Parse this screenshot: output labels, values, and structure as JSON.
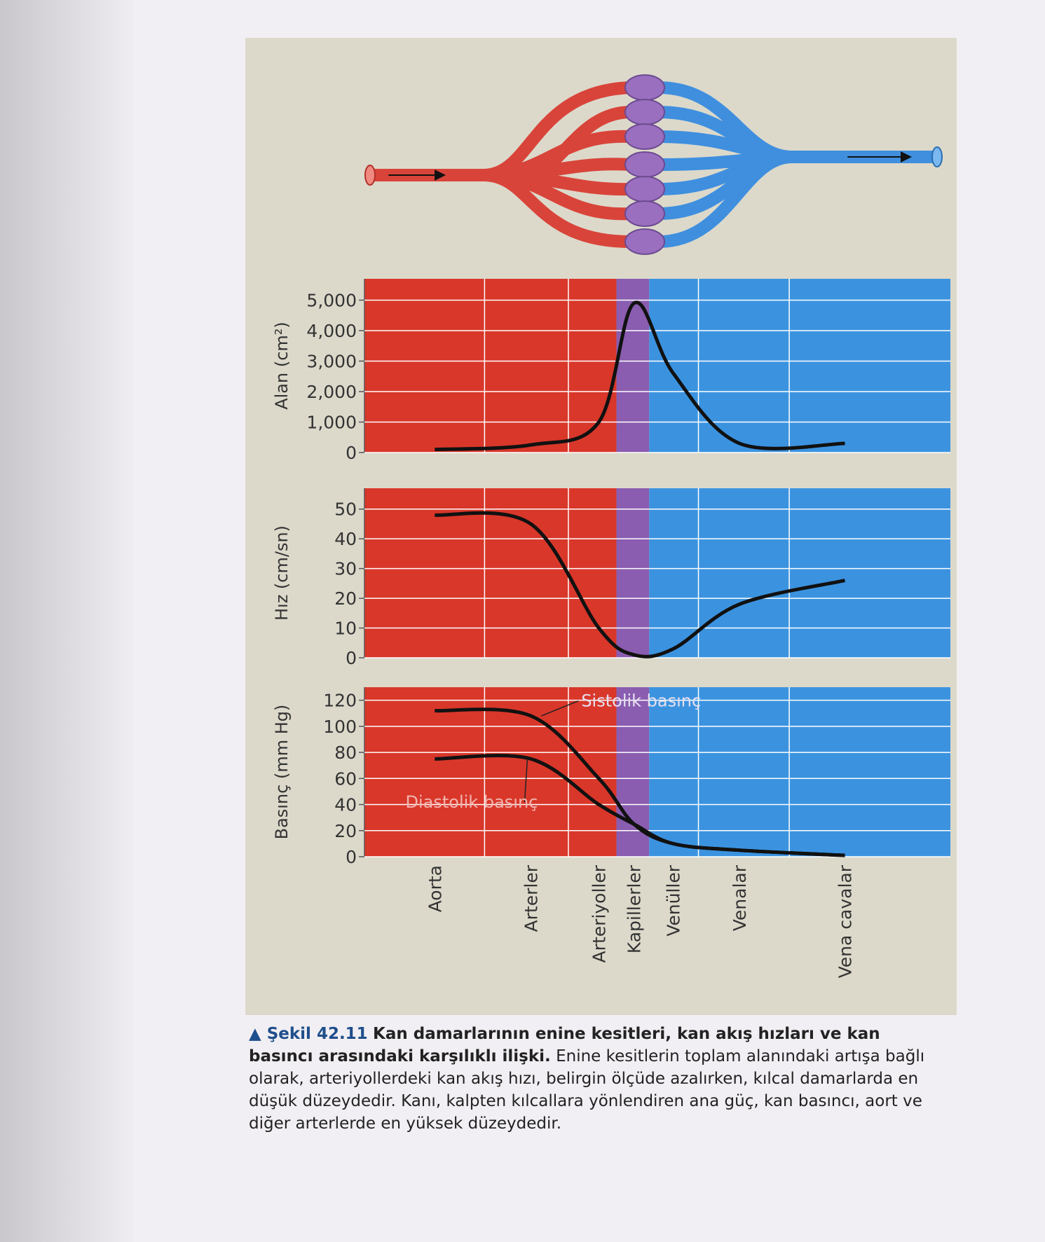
{
  "chart_data": [
    {
      "type": "line",
      "y_label": "Alan (cm²)",
      "series": [
        {
          "name": null,
          "color": "#111111",
          "values": [
            100,
            250,
            1000,
            4900,
            2600,
            300,
            300
          ]
        }
      ],
      "ylim": [
        0,
        5700
      ],
      "yticks": [
        0,
        {
          "value": 1000,
          "label": "1,000"
        },
        {
          "value": 2000,
          "label": "2,000"
        },
        {
          "value": 3000,
          "label": "3,000"
        },
        {
          "value": 4000,
          "label": "4,000"
        },
        {
          "value": 5000,
          "label": "5,000"
        }
      ],
      "grid": true
    },
    {
      "type": "line",
      "y_label": "Hız (cm/sn)",
      "series": [
        {
          "name": null,
          "color": "#111111",
          "values": [
            48,
            45,
            10,
            1,
            3,
            18,
            26
          ]
        }
      ],
      "ylim": [
        0,
        57
      ],
      "yticks": [
        0,
        10,
        20,
        30,
        40,
        50
      ],
      "grid": true
    },
    {
      "type": "line",
      "y_label": "Basınç (mm Hg)",
      "categories": [
        "Aorta",
        "Arterler",
        "Arteriyoller",
        "Kapillerler",
        "Venüller",
        "Venalar",
        "Vena cavalar"
      ],
      "series": [
        {
          "name": "Sistolik basınç",
          "color": "#111111",
          "values": [
            112,
            108,
            60,
            25,
            10,
            5,
            1
          ]
        },
        {
          "name": "Diastolik basınç",
          "color": "#111111",
          "values": [
            75,
            75,
            40,
            25,
            10,
            5,
            1
          ]
        }
      ],
      "ylim": [
        0,
        130
      ],
      "yticks": [
        0,
        20,
        40,
        60,
        80,
        100,
        120
      ],
      "grid": true
    }
  ],
  "caption": {
    "label": "Şekil 42.11",
    "title": "Kan damarlarının enine kesitleri, kan akış hızları ve kan basıncı arasındaki karşılıklı ilişki.",
    "body": "Enine kesitlerin toplam alanındaki artışa bağlı olarak, arteriyollerdeki kan akış hızı, belirgin ölçüde azalırken, kılcal damarlarda en düşük düzeydedir. Kanı, kalpten kılcallara yönlendiren ana güç, kan basıncı, aort ve diğer arterlerde en yüksek düzeydedir."
  }
}
